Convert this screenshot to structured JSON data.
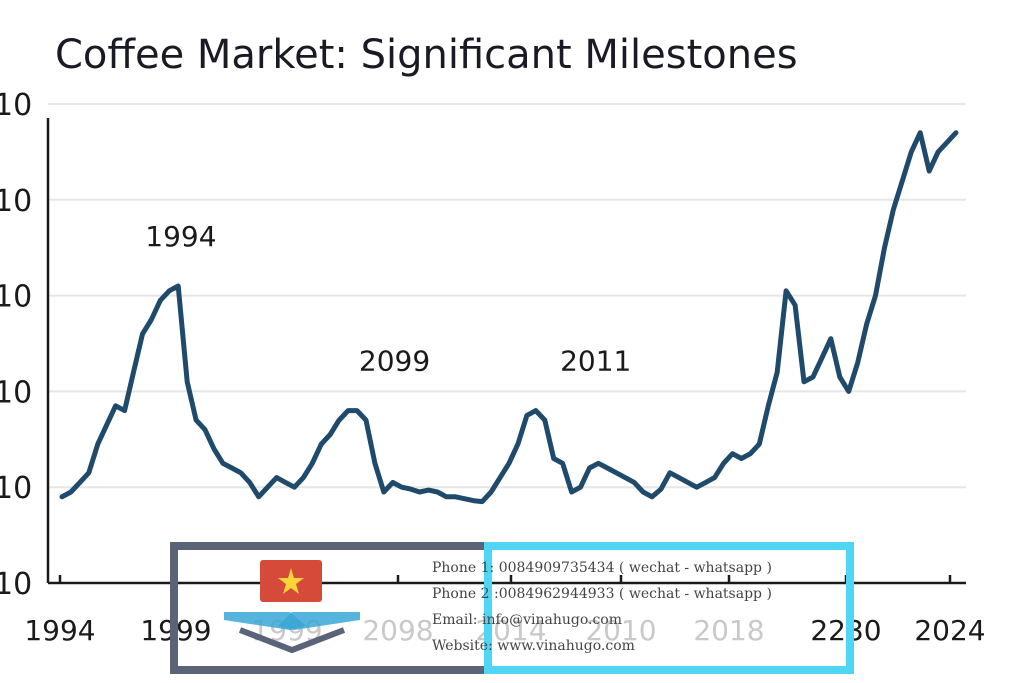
{
  "chart_data": {
    "type": "line",
    "title": "Coffee Market: Significant Milestones",
    "xlabel": "",
    "ylabel": "",
    "x_tick_labels": [
      "1994",
      "1999",
      "1999",
      "2098",
      "2014",
      "2010",
      "2018",
      "2230",
      "2024"
    ],
    "y_tick_labels": [
      "10",
      "10",
      "10",
      "10",
      "10",
      "10"
    ],
    "y_range": [
      0,
      5
    ],
    "x_range": [
      0,
      100
    ],
    "grid": "horizontal",
    "annotations": [
      {
        "text": "1994",
        "x": 13.3,
        "y": 3.1
      },
      {
        "text": "2099",
        "x": 37.2,
        "y": 1.8
      },
      {
        "text": "2011",
        "x": 59.7,
        "y": 1.8
      }
    ],
    "series": [
      {
        "x": [
          0,
          1,
          2,
          3,
          4,
          5,
          6,
          7,
          8,
          9,
          10,
          11,
          12,
          13,
          14,
          15,
          16,
          17,
          18,
          19,
          20,
          21,
          22,
          23,
          24,
          25,
          26,
          27,
          28,
          29,
          30,
          31,
          32,
          33,
          34,
          35,
          36,
          37,
          38,
          39,
          40,
          41,
          42,
          43,
          44,
          45,
          46,
          47,
          48,
          49,
          50,
          51,
          52,
          53,
          54,
          55,
          56,
          57,
          58,
          59,
          60,
          61,
          62,
          63,
          64,
          65,
          66,
          67,
          68,
          69,
          70,
          71,
          72,
          73,
          74,
          75,
          76,
          77,
          78,
          79,
          80,
          81,
          82,
          83,
          84,
          85,
          86,
          87,
          88,
          89,
          90,
          91,
          92,
          93,
          94,
          95,
          96,
          97,
          98,
          99,
          100
        ],
        "y": [
          0.9,
          0.95,
          1.05,
          1.15,
          1.45,
          1.65,
          1.85,
          1.8,
          2.2,
          2.6,
          2.75,
          2.95,
          3.05,
          3.1,
          2.1,
          1.7,
          1.6,
          1.4,
          1.25,
          1.2,
          1.15,
          1.05,
          0.9,
          1.0,
          1.1,
          1.05,
          1.0,
          1.1,
          1.25,
          1.45,
          1.55,
          1.7,
          1.8,
          1.8,
          1.7,
          1.25,
          0.95,
          1.05,
          1.0,
          0.98,
          0.95,
          0.97,
          0.95,
          0.9,
          0.9,
          0.88,
          0.86,
          0.85,
          0.95,
          1.1,
          1.25,
          1.45,
          1.75,
          1.8,
          1.7,
          1.3,
          1.25,
          0.95,
          1.0,
          1.2,
          1.25,
          1.2,
          1.15,
          1.1,
          1.05,
          0.95,
          0.9,
          0.98,
          1.15,
          1.1,
          1.05,
          1.0,
          1.05,
          1.1,
          1.25,
          1.35,
          1.3,
          1.35,
          1.45,
          1.85,
          2.2,
          3.05,
          2.9,
          2.1,
          2.15,
          2.35,
          2.55,
          2.15,
          2.0,
          2.3,
          2.7,
          3.0,
          3.5,
          3.9,
          4.2,
          4.5,
          4.7,
          4.3,
          4.5,
          4.6,
          4.7
        ]
      }
    ]
  },
  "watermark": {
    "phone1": "Phone 1: 0084909735434 ( wechat - whatsapp )",
    "phone2": "Phone 2 :0084962944933 ( wechat - whatsapp )",
    "email": "Email: info@vinahugo.com",
    "website": "Website: www.vinahugo.com",
    "colors": {
      "left_border": "#5a6377",
      "right_border": "#4fd6f5",
      "flag_red": "#d64a3a",
      "flag_star": "#f7d43a",
      "wing": "#3aa7d6"
    }
  }
}
